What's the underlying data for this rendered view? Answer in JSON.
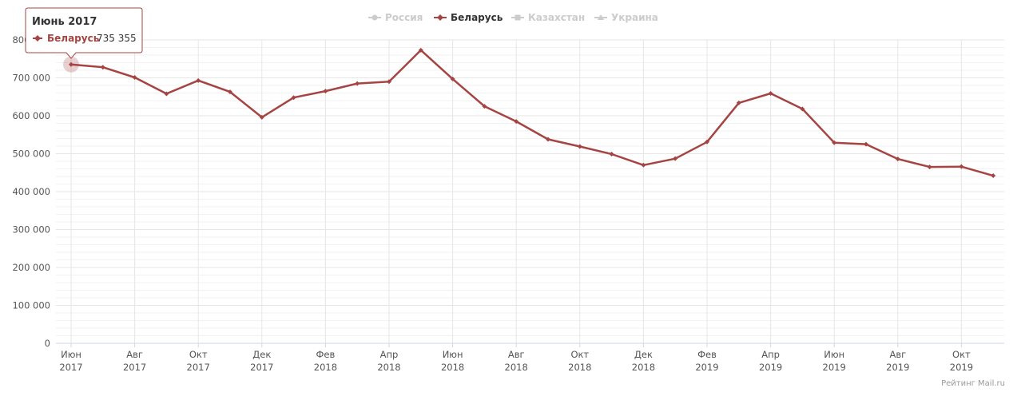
{
  "legend": [
    {
      "label": "Россия",
      "active": false,
      "marker": "circle"
    },
    {
      "label": "Беларусь",
      "active": true,
      "marker": "diamond"
    },
    {
      "label": "Казахстан",
      "active": false,
      "marker": "square"
    },
    {
      "label": "Украина",
      "active": false,
      "marker": "triangle"
    }
  ],
  "tooltip": {
    "title": "Июнь 2017",
    "series": "Беларусь",
    "value": "735 355"
  },
  "credits": "Рейтинг Mail.ru",
  "colors": {
    "series": "#a54442",
    "inactive": "#cccccc",
    "grid": "#e6e6e6",
    "minor_grid": "#f2f2f2"
  },
  "chart_data": {
    "type": "line",
    "series": [
      {
        "name": "Беларусь",
        "x": [
          "2017-06",
          "2017-07",
          "2017-08",
          "2017-09",
          "2017-10",
          "2017-11",
          "2017-12",
          "2018-01",
          "2018-02",
          "2018-03",
          "2018-04",
          "2018-05",
          "2018-06",
          "2018-07",
          "2018-08",
          "2018-09",
          "2018-10",
          "2018-11",
          "2018-12",
          "2019-01",
          "2019-02",
          "2019-03",
          "2019-04",
          "2019-05",
          "2019-06",
          "2019-07",
          "2019-08",
          "2019-09",
          "2019-10",
          "2019-11"
        ],
        "values": [
          735355,
          728000,
          701000,
          658000,
          693000,
          663000,
          596000,
          648000,
          665000,
          685000,
          690000,
          773000,
          697000,
          625000,
          585000,
          538000,
          519000,
          499000,
          470000,
          487000,
          531000,
          634000,
          659000,
          618000,
          529000,
          525000,
          486000,
          465000,
          466000,
          442000
        ]
      }
    ],
    "ylim": [
      0,
      800000
    ],
    "yticks": [
      {
        "value": 0,
        "label": "0"
      },
      {
        "value": 100000,
        "label": "100 000"
      },
      {
        "value": 200000,
        "label": "200 000"
      },
      {
        "value": 300000,
        "label": "300 000"
      },
      {
        "value": 400000,
        "label": "400 000"
      },
      {
        "value": 500000,
        "label": "500 000"
      },
      {
        "value": 600000,
        "label": "600 000"
      },
      {
        "value": 700000,
        "label": "700 000"
      },
      {
        "value": 800000,
        "label": "800 000"
      }
    ],
    "xticks": [
      {
        "index": 0,
        "month": "Июн",
        "year": "2017"
      },
      {
        "index": 2,
        "month": "Авг",
        "year": "2017"
      },
      {
        "index": 4,
        "month": "Окт",
        "year": "2017"
      },
      {
        "index": 6,
        "month": "Дек",
        "year": "2017"
      },
      {
        "index": 8,
        "month": "Фев",
        "year": "2018"
      },
      {
        "index": 10,
        "month": "Апр",
        "year": "2018"
      },
      {
        "index": 12,
        "month": "Июн",
        "year": "2018"
      },
      {
        "index": 14,
        "month": "Авг",
        "year": "2018"
      },
      {
        "index": 16,
        "month": "Окт",
        "year": "2018"
      },
      {
        "index": 18,
        "month": "Дек",
        "year": "2018"
      },
      {
        "index": 20,
        "month": "Фев",
        "year": "2019"
      },
      {
        "index": 22,
        "month": "Апр",
        "year": "2019"
      },
      {
        "index": 24,
        "month": "Июн",
        "year": "2019"
      },
      {
        "index": 26,
        "month": "Авг",
        "year": "2019"
      },
      {
        "index": 28,
        "month": "Окт",
        "year": "2019"
      }
    ],
    "grid": true,
    "legend_position": "top-center",
    "highlighted_index": 0
  }
}
